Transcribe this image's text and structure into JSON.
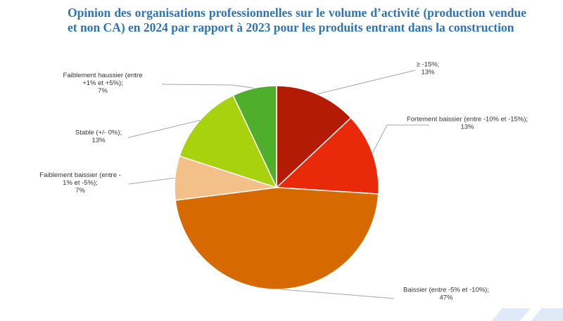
{
  "title": "Opinion des organisations professionnelles sur le volume d’activité (production vendue et non CA) en 2024 par rapport à 2023 pour les produits entrant dans la construction",
  "chart_data": {
    "type": "pie",
    "title": "Opinion des organisations professionnelles sur le volume d’activité (production vendue et non CA) en 2024 par rapport à 2023 pour les produits entrant dans la construction",
    "unit": "%",
    "legend": "none",
    "slices": [
      {
        "label_lines": [
          "≥ -15%;"
        ],
        "value": 13,
        "value_label": "13%",
        "color": "#b31b04"
      },
      {
        "label_lines": [
          "Fortement baissier (entre -10% et -15%);"
        ],
        "value": 13,
        "value_label": "13%",
        "color": "#e8290a"
      },
      {
        "label_lines": [
          "Baissier (entre -5% et -10%);"
        ],
        "value": 47,
        "value_label": "47%",
        "color": "#d66a00"
      },
      {
        "label_lines": [
          "Faiblement baissier (entre -",
          "1% et -5%);"
        ],
        "value": 7,
        "value_label": "7%",
        "color": "#f4c089"
      },
      {
        "label_lines": [
          "Stable (+/- 0%);"
        ],
        "value": 13,
        "value_label": "13%",
        "color": "#a8d10e"
      },
      {
        "label_lines": [
          "Faiblement haussier (entre",
          "+1% et +5%);"
        ],
        "value": 7,
        "value_label": "7%",
        "color": "#4fae2c"
      }
    ]
  }
}
